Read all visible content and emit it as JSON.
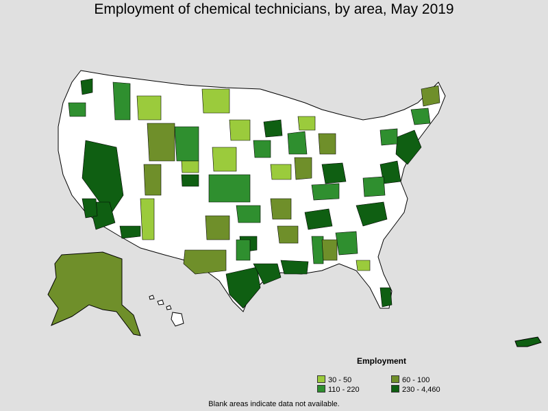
{
  "title": "Employment of chemical technicians, by area, May 2019",
  "legend": {
    "title": "Employment",
    "items": [
      {
        "label": "30 - 50",
        "color": "#9bcb3c"
      },
      {
        "label": "60 - 100",
        "color": "#6f8f2a"
      },
      {
        "label": "110 - 220",
        "color": "#2f8f2f"
      },
      {
        "label": "230 - 4,460",
        "color": "#0f5f12"
      }
    ]
  },
  "footnote": "Blank areas indicate data not available.",
  "colors": {
    "background": "#e0e0e0",
    "no_data": "#ffffff",
    "border": "#000000"
  }
}
